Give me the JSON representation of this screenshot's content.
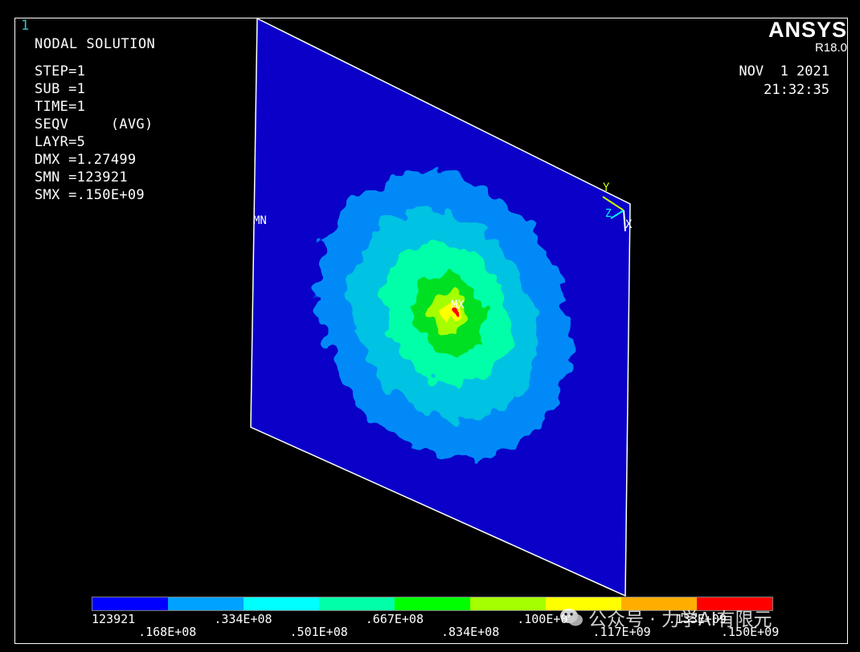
{
  "window_number": "1",
  "title": "NODAL SOLUTION",
  "info_lines": [
    "STEP=1",
    "SUB =1",
    "TIME=1",
    "SEQV     (AVG)",
    "LAYR=5",
    "DMX =1.27499",
    "SMN =123921",
    "SMX =.150E+09"
  ],
  "brand": {
    "name": "ANSYS",
    "version": "R18.0"
  },
  "date": "NOV  1 2021",
  "time": "21:32:35",
  "markers": {
    "min_label": "MN",
    "max_label": "MX"
  },
  "triad": {
    "x": "X",
    "y": "Y",
    "z": "Z"
  },
  "legend": {
    "colors": [
      "#0000ff",
      "#00a2ff",
      "#00ffff",
      "#00ffa8",
      "#00ff00",
      "#a5ff00",
      "#ffff00",
      "#ffae00",
      "#ff0000"
    ],
    "labels": [
      "123921",
      ".168E+08",
      ".334E+08",
      ".501E+08",
      ".667E+08",
      ".834E+08",
      ".100E+09",
      ".117E+09",
      ".133E+09",
      ".150E+09"
    ]
  },
  "plate_colors": {
    "background": "#0a00c8",
    "edge": "#ffffff"
  },
  "watermark": "公众号 · 力学AI有限元"
}
